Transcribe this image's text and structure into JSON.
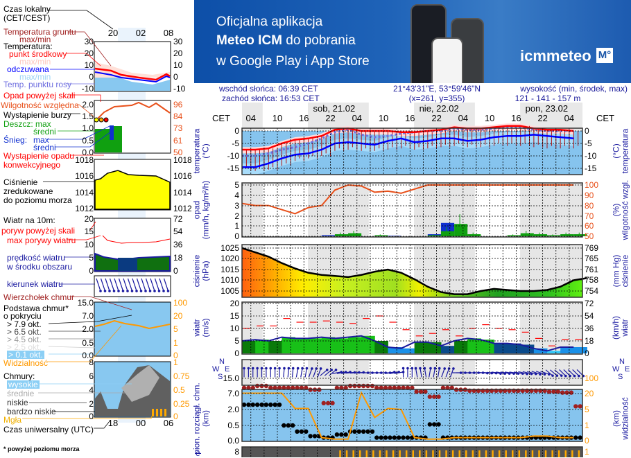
{
  "banner": {
    "line1": "Oficjalna aplikacja",
    "line2_bold": "Meteo ICM",
    "line2_rest": " do pobrania",
    "line3": "w Google Play i App Store",
    "logo_text": "icmmeteo",
    "logo_badge": "M°"
  },
  "header": {
    "sunrise": "wschód słońca: 06:39 CET",
    "sunset": "zachód słońca: 16:53 CET",
    "coords": "21°43'31\"E, 53°59'46\"N",
    "grid": "(x=261,  y=355)",
    "altitude_label": "wysokość (min, środek, max)",
    "altitude_value": "121 - 141 - 157 m"
  },
  "legend": {
    "local_time": "Czas lokalny",
    "local_time_zone": "(CET/CEST)",
    "ground_temp": "Temperatura gruntu",
    "ground_temp_mm": "max/min",
    "temperature": "Temperatura:",
    "mid_point": "punkt środkowy",
    "mid_mm": "max/min",
    "perceived": "odczuwana",
    "perceived_mm": "max/min",
    "dew_point": "Temp. punktu rosy",
    "precip_above": "Opad powyżej skali",
    "humidity": "Wilgotność względna",
    "storm": "Wystąpienie burzy",
    "rain_max": "Deszcz: max",
    "rain_avg": "średni",
    "snow": "Śnieg:",
    "snow_max": "max",
    "snow_avg": "średni",
    "convective_1": "Wystąpienie opadu",
    "convective_2": "konwekcyjnego",
    "pressure_1": "Ciśnienie",
    "pressure_2": "zredukowane",
    "pressure_3": "do poziomu morza",
    "wind": "Wiatr na 10m:",
    "gust_above": "poryw powyżej skali",
    "gust_max": "max porywy wiatru",
    "wind_speed_1": "prędkość wiatru",
    "wind_speed_2": "w środku obszaru",
    "wind_dir": "kierunek wiatru",
    "cloud_top": "Wierzchołek chmur",
    "cloud_base_1": "Podstawa chmur*",
    "cloud_base_2": "o pokryciu",
    "okt": [
      "> 7.9 okt.",
      "> 6.5 okt.",
      "> 4.5 okt.",
      "> 2.5 okt.",
      "> 0.1 okt."
    ],
    "visibility": "Widzialność",
    "clouds": "Chmury:",
    "high": "wysokie",
    "mid": "średnie",
    "low": "niskie",
    "very_low": "bardzo niskie",
    "fog": "Mgła",
    "utc": "Czas uniwersalny (UTC)",
    "footnote": "* powyżej poziomu morza",
    "top_times": [
      "20",
      "02",
      "08"
    ],
    "bottom_times": [
      "18",
      "00",
      "06"
    ],
    "ticks": {
      "temp_l": [
        "30",
        "20",
        "10",
        "0",
        "-10"
      ],
      "temp_r": [
        "30",
        "20",
        "10",
        "0",
        "-10"
      ],
      "precip_l": [
        "2.0",
        "1.5",
        "1.0",
        "0.5",
        "0.0"
      ],
      "precip_r": [
        "96",
        "84",
        "73",
        "61",
        "50"
      ],
      "press_l": [
        "1018",
        "1016",
        "1014",
        "1012"
      ],
      "press_r": [
        "1018",
        "1016",
        "1014",
        "1012"
      ],
      "wind_l": [
        "20",
        "15",
        "10",
        "5",
        "0"
      ],
      "wind_r": [
        "72",
        "54",
        "36",
        "18",
        "0"
      ],
      "cloud_l": [
        "15.0",
        "7.0",
        "2.0",
        "0.5",
        "0.0"
      ],
      "cloud_r": [
        "100",
        "20",
        "5",
        "1",
        "0"
      ],
      "cover_l": [
        "8",
        "6",
        "4",
        "2",
        "0"
      ],
      "cover_r": [
        "1",
        "0.75",
        "0.5",
        "0.25",
        "0"
      ]
    }
  },
  "chart_data": {
    "type": "line",
    "timezone_label": "CET",
    "days": [
      "sob, 21.02",
      "nie, 22.02",
      "pon, 23.02"
    ],
    "hour_ticks": [
      "04",
      "10",
      "16",
      "22",
      "04",
      "10",
      "16",
      "22",
      "04",
      "10",
      "16",
      "22",
      "04"
    ],
    "time": [
      "21.02 02",
      "21.02 05",
      "21.02 08",
      "21.02 11",
      "21.02 14",
      "21.02 17",
      "21.02 20",
      "21.02 23",
      "22.02 02",
      "22.02 05",
      "22.02 08",
      "22.02 11",
      "22.02 14",
      "22.02 17",
      "22.02 20",
      "22.02 23",
      "23.02 02",
      "23.02 05",
      "23.02 08",
      "23.02 11",
      "23.02 14",
      "23.02 17",
      "23.02 20",
      "23.02 23",
      "24.02 02",
      "24.02 05"
    ],
    "panels": {
      "temperature": {
        "ylabel_left": "temperatura",
        "unit_left": "(°C)",
        "ylabel_right": "temperatura",
        "unit_right": "(°C)",
        "ticks": [
          "0",
          "-5",
          "-10",
          "-15"
        ],
        "temperature": [
          -7.5,
          -7.5,
          -7,
          -5,
          -3.5,
          -3,
          -2,
          0.5,
          1,
          0,
          0,
          0,
          -0.5,
          -0.5,
          0,
          0.5,
          1.5,
          1,
          1,
          1.5,
          2,
          2,
          1,
          0.5,
          0.5,
          0
        ],
        "perceived": [
          -14.5,
          -14.5,
          -13,
          -11,
          -9.5,
          -9,
          -7.5,
          -5,
          -4.5,
          -5,
          -5.5,
          -4,
          -3,
          -4.5,
          -4,
          -3,
          -3,
          -4,
          -3.5,
          -2.5,
          -2,
          -2,
          -1.5,
          -2,
          -2.5,
          -3
        ],
        "dew_point": [
          -10,
          -10,
          -9,
          -7.5,
          -6.5,
          -5,
          -3,
          -0.5,
          0.5,
          -1.5,
          -2.5,
          -2,
          -1,
          -0.5,
          0,
          0,
          1,
          0.5,
          0.5,
          1,
          1.5,
          1.5,
          0.5,
          0,
          0,
          0
        ],
        "ground_min": [
          -16,
          -16,
          -15.5,
          -14,
          -12,
          -11,
          -10,
          -8,
          -7.5,
          -8,
          -8,
          -7.5,
          -7,
          -7.5,
          -7,
          -6.5,
          -6,
          -6.5,
          -6.5,
          -6,
          -6,
          -6,
          -6.5,
          -7,
          -7,
          -7
        ]
      },
      "precipitation": {
        "ylabel_left": "opad",
        "unit_left": "(mm/h, kg/m²/h)",
        "ylabel_right": "wilgotność wzgl.",
        "unit_right": "(%)",
        "ticks_left": [
          "5",
          "4",
          "3",
          "2",
          "1",
          "0"
        ],
        "ticks_right": [
          "100",
          "90",
          "80",
          "70",
          "60",
          "50"
        ],
        "humidity": [
          82,
          80,
          80,
          76,
          72,
          78,
          80,
          95,
          100,
          99,
          93,
          94,
          92,
          96,
          100,
          100,
          100,
          100,
          100,
          100,
          100,
          100,
          100,
          100,
          100,
          100
        ],
        "rain": [
          0,
          0,
          0,
          0,
          0,
          0,
          0,
          0.2,
          0.3,
          0,
          0.1,
          0,
          0,
          0,
          0.1,
          0.5,
          1.2,
          0.2,
          0,
          0,
          0.1,
          0.3,
          0.2,
          0.1,
          0.2,
          0.2
        ],
        "snow": [
          0,
          0,
          0,
          0,
          0,
          0,
          0.1,
          0.1,
          0.1,
          0,
          0,
          0.05,
          0,
          0,
          0.2,
          1.3,
          0,
          0,
          0,
          0,
          0,
          0,
          0,
          0,
          0,
          0
        ]
      },
      "pressure": {
        "ylabel_left": "ciśnienie",
        "unit_left": "(hPa)",
        "ylabel_right": "ciśnienie",
        "unit_right": "(mm Hg)",
        "ticks_left": [
          "1025",
          "1020",
          "1015",
          "1010",
          "1005"
        ],
        "ticks_right": [
          "769",
          "765",
          "761",
          "758",
          "754"
        ],
        "values": [
          1025,
          1023,
          1021,
          1018,
          1015.5,
          1013.5,
          1012.5,
          1012,
          1011.5,
          1012.5,
          1014,
          1015,
          1013.5,
          1010.5,
          1007,
          1004.5,
          1003.5,
          1003.5,
          1005,
          1006,
          1005.5,
          1005,
          1005,
          1005.5,
          1007,
          1010
        ]
      },
      "wind": {
        "ylabel_left": "wiatr",
        "unit_left": "(m/s)",
        "ylabel_right": "wiatr",
        "unit_right": "(km/h)",
        "ticks_left": [
          "20",
          "15",
          "10",
          "5",
          "0"
        ],
        "ticks_right": [
          "72",
          "54",
          "36",
          "18",
          "0"
        ],
        "speed": [
          5,
          5.5,
          5,
          6.5,
          6,
          6,
          6.5,
          6,
          6.5,
          7,
          5,
          2.5,
          2,
          4.5,
          4.5,
          3,
          5,
          6,
          5.5,
          4,
          4,
          3.5,
          2,
          1,
          2.5,
          2.5
        ],
        "gust": [
          10,
          11,
          11,
          14,
          12.5,
          12.5,
          13,
          12.5,
          12,
          14,
          15,
          12.5,
          9.5,
          7,
          8,
          9.5,
          7,
          10,
          11.5,
          10,
          9.5,
          8.5,
          6,
          3,
          5.5,
          5.5
        ],
        "direction_deg": [
          180,
          180,
          180,
          185,
          190,
          200,
          230,
          260,
          265,
          270,
          270,
          260,
          180,
          170,
          190,
          200,
          270,
          270,
          275,
          280,
          280,
          285,
          290,
          310,
          315,
          315
        ],
        "compass": [
          "N",
          "W",
          "E",
          "S"
        ]
      },
      "clouds": {
        "ylabel_left": "pion. rozciągł. chm.",
        "unit_left": "(km)",
        "ylabel_right": "widzialność",
        "unit_right": "(km)",
        "ticks_left": [
          "15.0",
          "7.0",
          "2.0",
          "0.5",
          "0.0"
        ],
        "ticks_right": [
          "100",
          "20",
          "5",
          "1",
          "0"
        ],
        "cloud_top": [
          10,
          11,
          10,
          10,
          10,
          9,
          4,
          10,
          11,
          11,
          10,
          10,
          10,
          8,
          6,
          10,
          9,
          8.5,
          8.5,
          8.5,
          8.5,
          8.5,
          8.5,
          8,
          7.5,
          3
        ],
        "cloud_base": [
          3.5,
          3.5,
          3.5,
          0.5,
          0.3,
          0.15,
          0.1,
          0.2,
          0.3,
          0.3,
          0.1,
          0.1,
          0.1,
          0.1,
          0.6,
          0.1,
          0.1,
          0.1,
          0.1,
          0.1,
          0.1,
          0.1,
          0.1,
          0.1,
          0.1,
          0.1
        ],
        "visibility": [
          22,
          22,
          22,
          22,
          6,
          6,
          0.2,
          0.1,
          0.1,
          24,
          3,
          6,
          5,
          0.2,
          0.1,
          0.1,
          0.2,
          0.2,
          0.2,
          0.2,
          0.2,
          0.2,
          0.3,
          0.3,
          0.2,
          0.2
        ]
      },
      "cloud_cover": {
        "ticks_left": [
          "8"
        ],
        "ticks_right": [
          "1"
        ],
        "ylabel_left": "e"
      }
    },
    "colors": {
      "temperature": "#ff0000",
      "perceived": "#0000ff",
      "dew_point": "#7070e0",
      "humidity": "#e8501a",
      "rain": "#10a010",
      "snow": "#1030d0",
      "pressure": "#000000",
      "gust": "#ff0000",
      "wind": "#1a1aa0",
      "visibility": "#ff9900",
      "cloud_top": "#a02020",
      "night": "#e6e6e6"
    }
  }
}
